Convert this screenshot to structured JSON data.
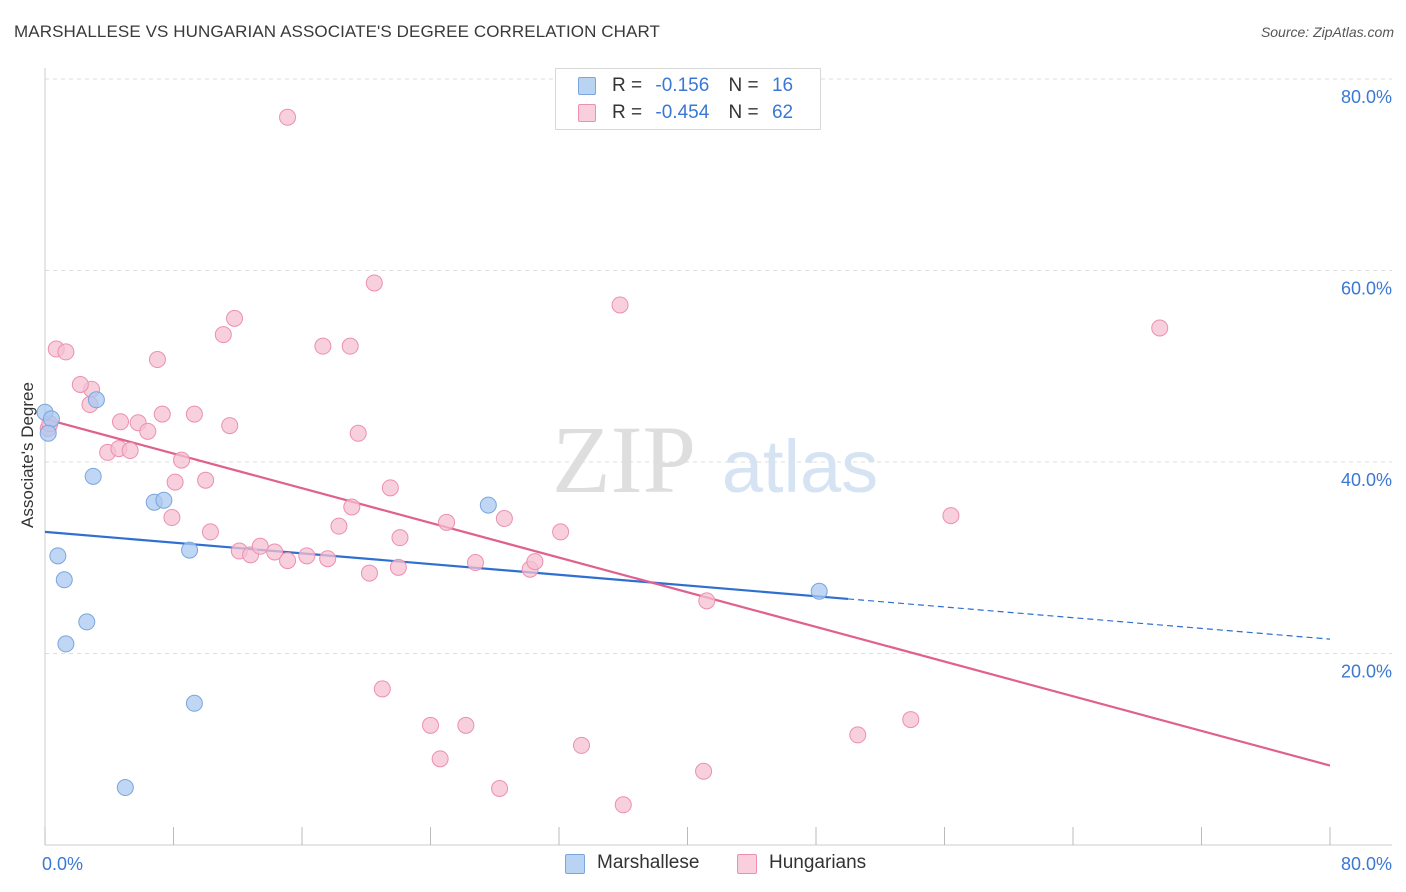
{
  "chart_data": {
    "type": "scatter",
    "title": "MARSHALLESE VS HUNGARIAN ASSOCIATE'S DEGREE CORRELATION CHART",
    "source": "Source: ZipAtlas.com",
    "watermark": {
      "zip": "ZIP",
      "atlas": "atlas"
    },
    "xlabel": "",
    "ylabel": "Associate's Degree",
    "xlim": [
      0,
      80
    ],
    "ylim": [
      0,
      80
    ],
    "x_tick_labels": {
      "left": "0.0%",
      "right": "80.0%"
    },
    "y_ticks": [
      {
        "value": 20,
        "label": "20.0%"
      },
      {
        "value": 40,
        "label": "40.0%"
      },
      {
        "value": 60,
        "label": "60.0%"
      },
      {
        "value": 80,
        "label": "80.0%"
      }
    ],
    "legend_top": [
      {
        "r_label": "R =",
        "r_value": "-0.156",
        "n_label": "N =",
        "n_value": "16"
      },
      {
        "r_label": "R =",
        "r_value": "-0.454",
        "n_label": "N =",
        "n_value": "62"
      }
    ],
    "series": [
      {
        "name": "Marshallese",
        "color": "#a9c8f0",
        "stroke": "#7aa5dd",
        "line_color": "#2f6fd0",
        "trend": {
          "x0": 0,
          "y0": 32.7,
          "x1": 50,
          "y1": 25.7,
          "dash_to_x": 80,
          "dash_to_y": 21.5
        },
        "points": [
          [
            0.0,
            45.2
          ],
          [
            0.4,
            44.5
          ],
          [
            0.2,
            43.0
          ],
          [
            3.2,
            46.5
          ],
          [
            3.0,
            38.5
          ],
          [
            6.8,
            35.8
          ],
          [
            7.4,
            36.0
          ],
          [
            0.8,
            30.2
          ],
          [
            1.2,
            27.7
          ],
          [
            9.0,
            30.8
          ],
          [
            2.6,
            23.3
          ],
          [
            1.3,
            21.0
          ],
          [
            9.3,
            14.8
          ],
          [
            5.0,
            6.0
          ],
          [
            27.6,
            35.5
          ],
          [
            48.2,
            26.5
          ]
        ]
      },
      {
        "name": "Hungarians",
        "color": "#f6c0d1",
        "stroke": "#ec8fb0",
        "line_color": "#e0608e",
        "trend": {
          "x0": 0,
          "y0": 44.5,
          "x1": 80,
          "y1": 8.3
        },
        "points": [
          [
            0.2,
            43.5
          ],
          [
            0.7,
            51.8
          ],
          [
            1.3,
            51.5
          ],
          [
            2.9,
            47.6
          ],
          [
            2.2,
            48.1
          ],
          [
            0.3,
            44.0
          ],
          [
            2.8,
            46.0
          ],
          [
            4.7,
            44.2
          ],
          [
            5.8,
            44.1
          ],
          [
            6.4,
            43.2
          ],
          [
            7.3,
            45.0
          ],
          [
            9.3,
            45.0
          ],
          [
            11.5,
            43.8
          ],
          [
            10.0,
            38.1
          ],
          [
            8.5,
            40.2
          ],
          [
            11.1,
            53.3
          ],
          [
            11.8,
            55.0
          ],
          [
            15.1,
            76.0
          ],
          [
            17.3,
            52.1
          ],
          [
            19.0,
            52.1
          ],
          [
            20.5,
            58.7
          ],
          [
            7.0,
            50.7
          ],
          [
            3.9,
            41.0
          ],
          [
            4.6,
            41.4
          ],
          [
            5.3,
            41.2
          ],
          [
            19.5,
            43.0
          ],
          [
            8.1,
            37.9
          ],
          [
            7.9,
            34.2
          ],
          [
            10.3,
            32.7
          ],
          [
            12.1,
            30.7
          ],
          [
            12.8,
            30.3
          ],
          [
            13.4,
            31.2
          ],
          [
            14.3,
            30.6
          ],
          [
            15.1,
            29.7
          ],
          [
            16.3,
            30.2
          ],
          [
            17.6,
            29.9
          ],
          [
            18.3,
            33.3
          ],
          [
            19.1,
            35.3
          ],
          [
            20.2,
            28.4
          ],
          [
            21.5,
            37.3
          ],
          [
            22.1,
            32.1
          ],
          [
            22.0,
            29.0
          ],
          [
            25.0,
            33.7
          ],
          [
            26.8,
            29.5
          ],
          [
            28.6,
            34.1
          ],
          [
            30.2,
            28.8
          ],
          [
            30.5,
            29.6
          ],
          [
            32.1,
            32.7
          ],
          [
            35.8,
            56.4
          ],
          [
            41.2,
            25.5
          ],
          [
            21.0,
            16.3
          ],
          [
            24.0,
            12.5
          ],
          [
            26.2,
            12.5
          ],
          [
            24.6,
            9.0
          ],
          [
            28.3,
            5.9
          ],
          [
            33.4,
            10.4
          ],
          [
            36.0,
            4.2
          ],
          [
            41.0,
            7.7
          ],
          [
            50.6,
            11.5
          ],
          [
            53.9,
            13.1
          ],
          [
            56.4,
            34.4
          ],
          [
            69.4,
            54.0
          ]
        ]
      }
    ]
  }
}
